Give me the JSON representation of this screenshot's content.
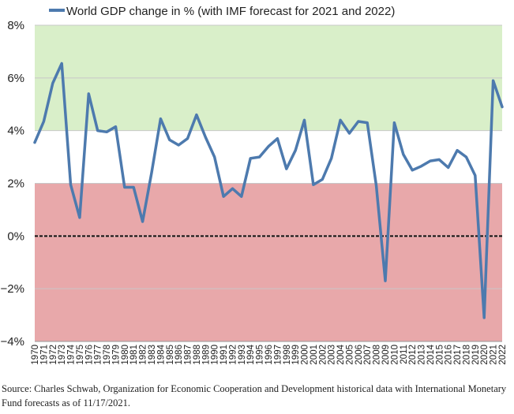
{
  "chart_data": {
    "type": "line",
    "title": "",
    "legend": "World GDP change in % (with IMF forecast for 2021 and 2022)",
    "legend_position": "top",
    "xlabel": "",
    "ylabel": "",
    "ylim": [
      -4,
      8
    ],
    "ytick_values": [
      -4,
      -2,
      0,
      2,
      4,
      6,
      8
    ],
    "ytick_labels": [
      "−4%",
      "−2%",
      "0%",
      "2%",
      "4%",
      "6%",
      "8%"
    ],
    "bands": [
      {
        "name": "high-growth-band",
        "from": 4,
        "to": 8,
        "color": "#d9efc9"
      },
      {
        "name": "low-growth-band",
        "from": -4,
        "to": 2,
        "color": "#e8a8aa"
      }
    ],
    "zero_line": true,
    "series_color": "#4d7aae",
    "categories": [
      "1970",
      "1971",
      "1972",
      "1973",
      "1974",
      "1975",
      "1976",
      "1977",
      "1978",
      "1979",
      "1980",
      "1981",
      "1982",
      "1983",
      "1984",
      "1985",
      "1986",
      "1987",
      "1988",
      "1989",
      "1990",
      "1991",
      "1992",
      "1993",
      "1994",
      "1995",
      "1996",
      "1997",
      "1998",
      "1999",
      "2000",
      "2001",
      "2002",
      "2003",
      "2004",
      "2005",
      "2006",
      "2007",
      "2008",
      "2009",
      "2010",
      "2011",
      "2012",
      "2013",
      "2014",
      "2015",
      "2016",
      "2017",
      "2018",
      "2019",
      "2020",
      "2021",
      "2022"
    ],
    "series": [
      {
        "name": "World GDP change in %",
        "values": [
          3.55,
          4.35,
          5.8,
          6.55,
          1.95,
          0.7,
          5.4,
          4.0,
          3.95,
          4.15,
          1.85,
          1.85,
          0.55,
          2.4,
          4.45,
          3.65,
          3.45,
          3.7,
          4.6,
          3.75,
          3.0,
          1.5,
          1.8,
          1.5,
          2.95,
          3.0,
          3.4,
          3.7,
          2.55,
          3.25,
          4.4,
          1.95,
          2.15,
          2.95,
          4.4,
          3.9,
          4.35,
          4.3,
          1.9,
          -1.7,
          4.3,
          3.1,
          2.5,
          2.65,
          2.85,
          2.9,
          2.6,
          3.25,
          3.0,
          2.3,
          -3.1,
          5.9,
          4.9
        ]
      }
    ]
  },
  "source_note": "Source: Charles Schwab, Organization for Economic Cooperation and Development historical data with International Monetary Fund forecasts as of 11/17/2021."
}
